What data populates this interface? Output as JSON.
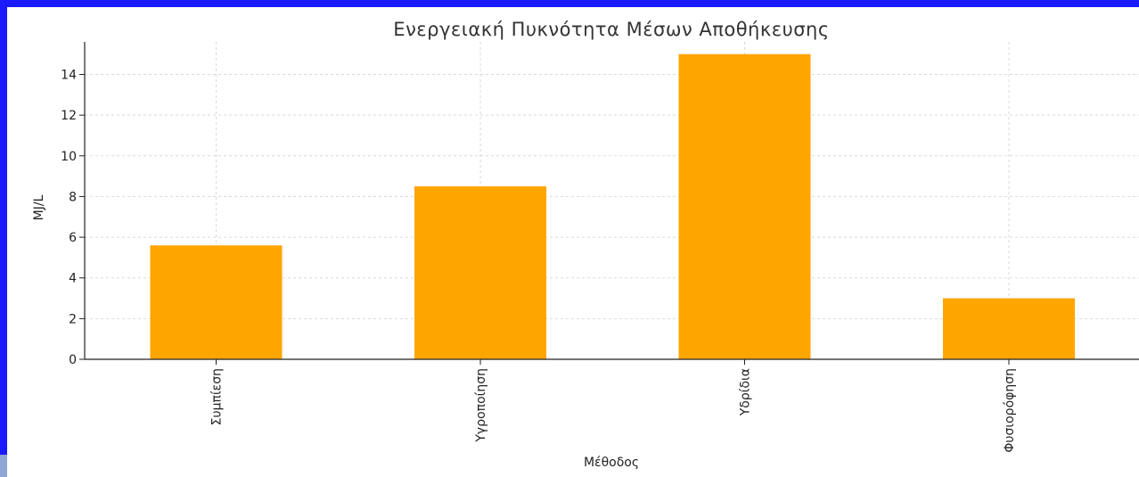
{
  "chart_data": {
    "type": "bar",
    "title": "Ενεργειακή Πυκνότητα Μέσων Αποθήκευσης",
    "xlabel": "Μέθοδος",
    "ylabel": "MJ/L",
    "categories": [
      "Συμπίεση",
      "Υγροποίηση",
      "Υδρίδια",
      "Φυσιορόφηση"
    ],
    "values": [
      5.6,
      8.5,
      15.0,
      3.0
    ],
    "ylim": [
      0,
      15.6
    ],
    "yticks": [
      0,
      2,
      4,
      6,
      8,
      10,
      12,
      14
    ],
    "grid": true,
    "bar_color": "#ffa500"
  }
}
